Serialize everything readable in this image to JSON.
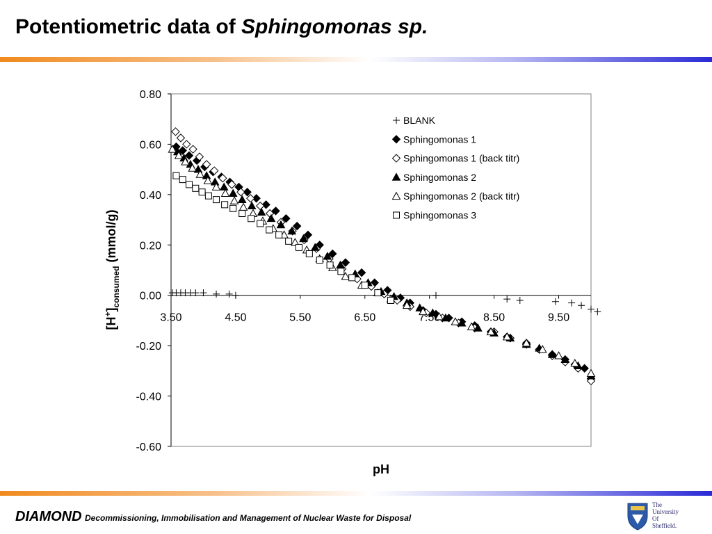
{
  "slide": {
    "title_plain": "Potentiometric data of ",
    "title_italic": "Sphingomonas sp."
  },
  "footer": {
    "brand": "DIAMOND",
    "description": "Decommissioning, Immobilisation and Management of Nuclear Waste for Disposal"
  },
  "logo": {
    "line1": "The",
    "line2": "University",
    "line3": "Of",
    "line4": "Sheffield."
  },
  "chart_data": {
    "type": "scatter",
    "title": "",
    "xlabel": "pH",
    "ylabel": {
      "main": "[H",
      "sup": "+",
      "close": "]",
      "sub": "consumed",
      "unit": " (mmol/g)"
    },
    "xlim": [
      3.5,
      10.0
    ],
    "ylim": [
      -0.6,
      0.8
    ],
    "xticks": [
      "3.50",
      "4.50",
      "5.50",
      "6.50",
      "7.50",
      "8.50",
      "9.50"
    ],
    "yticks": [
      "0.80",
      "0.60",
      "0.40",
      "0.20",
      "0.00",
      "-0.20",
      "-0.40",
      "-0.60"
    ],
    "grid": false,
    "legend_position": "top-right",
    "series": [
      {
        "name": "BLANK",
        "marker": "plus",
        "x": [
          3.52,
          3.58,
          3.65,
          3.72,
          3.8,
          3.88,
          4.0,
          4.2,
          4.4,
          4.5,
          7.6,
          8.7,
          8.9,
          9.45,
          9.7,
          9.85,
          10.0,
          10.1
        ],
        "y": [
          0.01,
          0.01,
          0.01,
          0.01,
          0.01,
          0.01,
          0.01,
          0.005,
          0.005,
          0.0,
          0.0,
          -0.015,
          -0.02,
          -0.025,
          -0.03,
          -0.04,
          -0.055,
          -0.065
        ]
      },
      {
        "name": "Sphingomonas 1",
        "marker": "diamond-filled",
        "x": [
          3.58,
          3.68,
          3.78,
          3.9,
          4.02,
          4.15,
          4.28,
          4.41,
          4.55,
          4.68,
          4.82,
          4.97,
          5.12,
          5.28,
          5.45,
          5.62,
          5.8,
          6.0,
          6.2,
          6.45,
          6.65,
          6.85,
          7.05,
          7.2,
          7.4,
          7.6,
          7.8,
          8.0,
          8.2,
          8.45,
          8.7,
          9.0,
          9.2,
          9.4,
          9.6,
          9.75,
          9.9,
          10.0
        ],
        "y": [
          0.59,
          0.575,
          0.555,
          0.535,
          0.51,
          0.49,
          0.47,
          0.45,
          0.43,
          0.41,
          0.385,
          0.36,
          0.335,
          0.305,
          0.275,
          0.24,
          0.2,
          0.165,
          0.13,
          0.09,
          0.05,
          0.02,
          -0.01,
          -0.03,
          -0.06,
          -0.075,
          -0.09,
          -0.105,
          -0.12,
          -0.145,
          -0.165,
          -0.19,
          -0.215,
          -0.235,
          -0.255,
          -0.275,
          -0.29,
          -0.33
        ]
      },
      {
        "name": "Sphingomonas 1 (back titr)",
        "marker": "diamond-open",
        "x": [
          3.57,
          3.65,
          3.74,
          3.84,
          3.94,
          4.05,
          4.17,
          4.3,
          4.44,
          4.58,
          4.73,
          4.88,
          5.03,
          5.2,
          5.38,
          5.56,
          5.75,
          5.95,
          6.15,
          6.38,
          6.6,
          6.8,
          7.0,
          7.2,
          7.45,
          7.7,
          7.95,
          8.2,
          8.5,
          8.75,
          9.0,
          9.2,
          9.4,
          9.6,
          9.8,
          10.0
        ],
        "y": [
          0.65,
          0.625,
          0.6,
          0.58,
          0.55,
          0.52,
          0.495,
          0.465,
          0.44,
          0.41,
          0.385,
          0.355,
          0.325,
          0.29,
          0.255,
          0.22,
          0.185,
          0.145,
          0.105,
          0.065,
          0.035,
          0.005,
          -0.02,
          -0.045,
          -0.07,
          -0.09,
          -0.11,
          -0.13,
          -0.145,
          -0.17,
          -0.195,
          -0.215,
          -0.24,
          -0.265,
          -0.29,
          -0.34
        ]
      },
      {
        "name": "Sphingomonas 2",
        "marker": "triangle-filled",
        "x": [
          3.6,
          3.7,
          3.8,
          3.92,
          4.05,
          4.18,
          4.32,
          4.46,
          4.6,
          4.75,
          4.9,
          5.05,
          5.2,
          5.37,
          5.55,
          5.73,
          5.92,
          6.12,
          6.35,
          6.55,
          6.75,
          6.95,
          7.15,
          7.35,
          7.55,
          7.75,
          8.0,
          8.25,
          8.5,
          8.75,
          9.0,
          9.2,
          9.4,
          9.6,
          9.8,
          10.0
        ],
        "y": [
          0.57,
          0.545,
          0.52,
          0.5,
          0.475,
          0.45,
          0.43,
          0.405,
          0.38,
          0.355,
          0.33,
          0.305,
          0.28,
          0.255,
          0.225,
          0.19,
          0.155,
          0.12,
          0.085,
          0.05,
          0.015,
          -0.005,
          -0.03,
          -0.05,
          -0.07,
          -0.09,
          -0.11,
          -0.13,
          -0.15,
          -0.17,
          -0.195,
          -0.21,
          -0.235,
          -0.255,
          -0.28,
          -0.32
        ]
      },
      {
        "name": "Sphingomonas 2 (back titr)",
        "marker": "triangle-open",
        "x": [
          3.52,
          3.62,
          3.72,
          3.83,
          3.95,
          4.07,
          4.2,
          4.34,
          4.48,
          4.62,
          4.77,
          4.92,
          5.08,
          5.25,
          5.42,
          5.6,
          5.8,
          6.0,
          6.2,
          6.45,
          6.7,
          6.9,
          7.15,
          7.4,
          7.65,
          7.9,
          8.15,
          8.45,
          8.7,
          9.0,
          9.25,
          9.5,
          9.75,
          10.0
        ],
        "y": [
          0.58,
          0.555,
          0.53,
          0.505,
          0.48,
          0.455,
          0.43,
          0.405,
          0.375,
          0.35,
          0.325,
          0.295,
          0.265,
          0.24,
          0.21,
          0.18,
          0.145,
          0.11,
          0.075,
          0.04,
          0.01,
          -0.015,
          -0.04,
          -0.065,
          -0.085,
          -0.105,
          -0.125,
          -0.145,
          -0.165,
          -0.19,
          -0.215,
          -0.24,
          -0.27,
          -0.31
        ]
      },
      {
        "name": "Sphingomonas 3",
        "marker": "square-open",
        "x": [
          3.58,
          3.68,
          3.78,
          3.88,
          3.98,
          4.08,
          4.2,
          4.33,
          4.46,
          4.6,
          4.74,
          4.88,
          5.02,
          5.17,
          5.32,
          5.48,
          5.64,
          5.8,
          5.96,
          6.13,
          6.3,
          6.5,
          6.7,
          6.9
        ],
        "y": [
          0.475,
          0.46,
          0.44,
          0.425,
          0.41,
          0.395,
          0.38,
          0.36,
          0.345,
          0.325,
          0.305,
          0.285,
          0.26,
          0.24,
          0.215,
          0.19,
          0.165,
          0.14,
          0.12,
          0.095,
          0.07,
          0.04,
          0.01,
          -0.02
        ]
      }
    ]
  }
}
